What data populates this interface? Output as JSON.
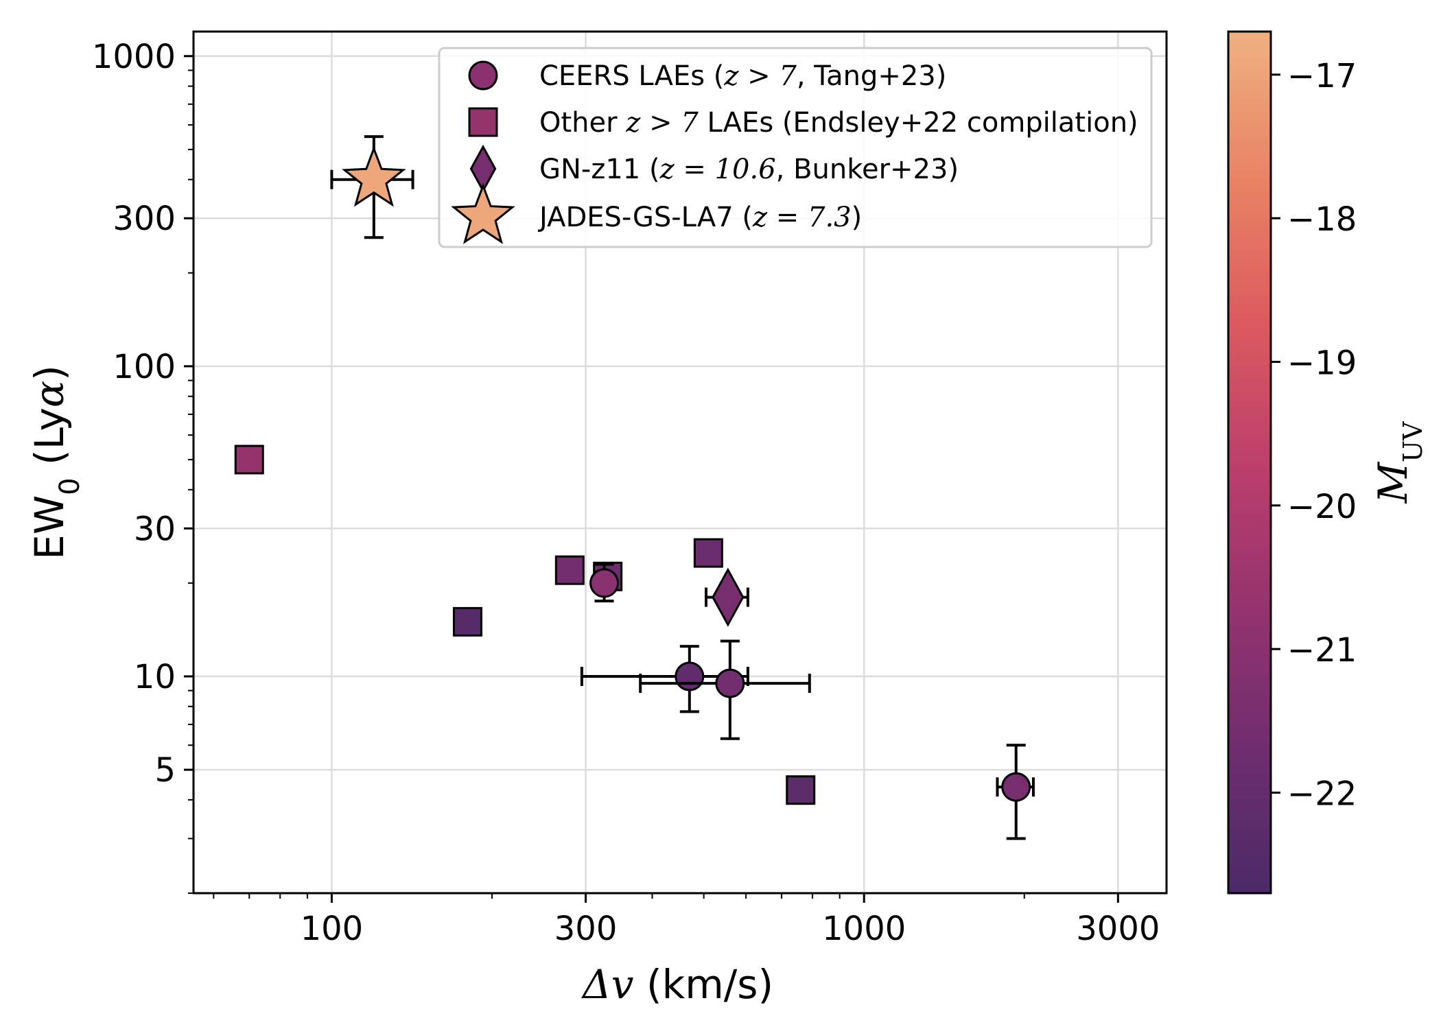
{
  "chart_data": {
    "type": "scatter",
    "x_axis": {
      "scale": "log",
      "lim": [
        55,
        3700
      ],
      "ticks": [
        100,
        300,
        1000,
        3000
      ],
      "tick_labels": [
        "100",
        "300",
        "1000",
        "3000"
      ],
      "label": "Δv (km/s)"
    },
    "y_axis": {
      "scale": "log",
      "lim": [
        2.0,
        1200
      ],
      "ticks": [
        5,
        10,
        30,
        100,
        300,
        1000
      ],
      "tick_labels": [
        "5",
        "10",
        "30",
        "100",
        "300",
        "1000"
      ],
      "label": "EW₀ (Lyα)"
    },
    "grid": true,
    "legend_position": "top-right",
    "colorbar": {
      "label": "M_UV",
      "cmap": "flare",
      "range": [
        -22.7,
        -16.7
      ],
      "ticks": [
        -17,
        -18,
        -19,
        -20,
        -21,
        -22
      ],
      "tick_labels": [
        "−17",
        "−18",
        "−19",
        "−20",
        "−21",
        "−22"
      ],
      "colors": [
        "#4b2a67",
        "#6f2d6f",
        "#95336f",
        "#bd3f6c",
        "#dd5b5f",
        "#e98464",
        "#efb080"
      ]
    },
    "series": [
      {
        "name": "CEERS LAEs (z > 7, Tang+23)",
        "legend_text": "CEERS LAEs (",
        "legend_math": "z > 7",
        "legend_tail": ", Tang+23)",
        "marker": "circle",
        "points": [
          {
            "x": 325,
            "y": 20,
            "muv": -21.0,
            "xerr": [
              0,
              0
            ],
            "yerr": [
              2.5,
              3
            ]
          },
          {
            "x": 470,
            "y": 10,
            "muv": -22.1,
            "xerr": [
              175,
              135
            ],
            "yerr": [
              2.3,
              2.5
            ]
          },
          {
            "x": 560,
            "y": 9.5,
            "muv": -21.6,
            "xerr": [
              180,
              230
            ],
            "yerr": [
              3.2,
              3.5
            ]
          },
          {
            "x": 1930,
            "y": 4.4,
            "muv": -21.5,
            "xerr": [
              150,
              150
            ],
            "yerr": [
              1.4,
              1.6
            ]
          }
        ]
      },
      {
        "name": "Other z > 7 LAEs (Endsley+22 compilation)",
        "legend_text": "Other ",
        "legend_math": "z > 7",
        "legend_tail": " LAEs (Endsley+22 compilation)",
        "marker": "square",
        "points": [
          {
            "x": 70,
            "y": 50,
            "muv": -20.7
          },
          {
            "x": 180,
            "y": 15,
            "muv": -22.4
          },
          {
            "x": 280,
            "y": 22,
            "muv": -21.6
          },
          {
            "x": 330,
            "y": 21,
            "muv": -21.8
          },
          {
            "x": 510,
            "y": 25,
            "muv": -21.8
          },
          {
            "x": 760,
            "y": 4.3,
            "muv": -22.2
          }
        ]
      },
      {
        "name": "GN-z11 (z = 10.6, Bunker+23)",
        "legend_text": "GN-z11 (",
        "legend_math": "z = 10.6",
        "legend_tail": ", Bunker+23)",
        "marker": "diamond",
        "points": [
          {
            "x": 555,
            "y": 18,
            "muv": -21.5,
            "xerr": [
              50,
              50
            ],
            "yerr": [
              0,
              0
            ]
          }
        ]
      },
      {
        "name": "JADES-GS-LA7 (z = 7.3)",
        "legend_text": "JADES-GS-LA7 (",
        "legend_math": "z = 7.3",
        "legend_tail": ")",
        "marker": "star",
        "points": [
          {
            "x": 120,
            "y": 400,
            "muv": -16.9,
            "xerr": [
              20,
              22
            ],
            "yerr": [
              140,
              150
            ]
          }
        ]
      }
    ]
  }
}
